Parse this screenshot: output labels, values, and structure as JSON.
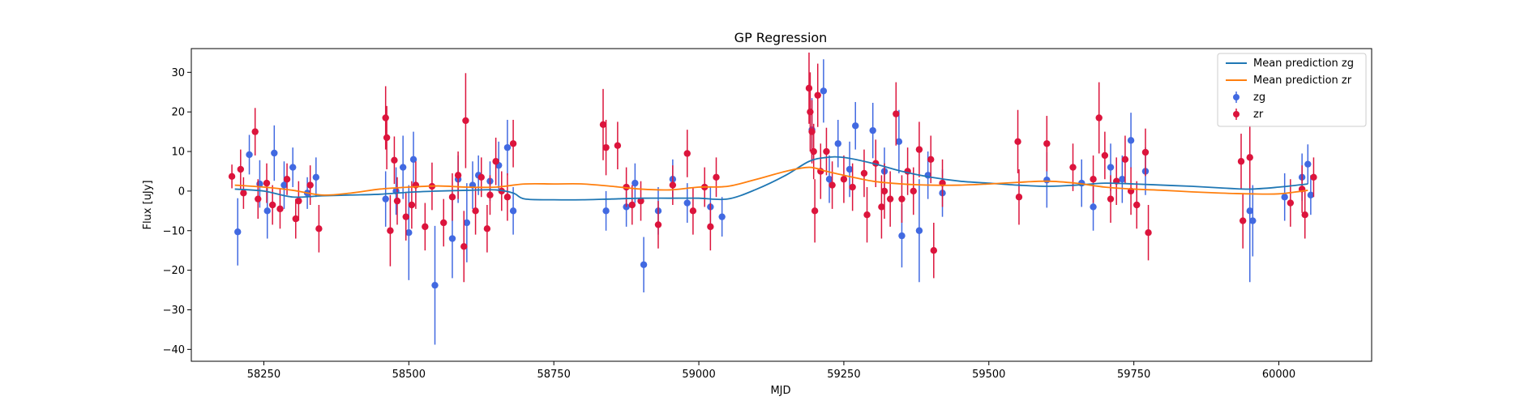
{
  "chart_data": {
    "type": "scatter",
    "title": "GP Regression",
    "xlabel": "MJD",
    "ylabel": "Flux [uJy]",
    "xlim": [
      58125,
      60160
    ],
    "ylim": [
      -43,
      36
    ],
    "xticks": [
      58250,
      58500,
      58750,
      59000,
      59250,
      59500,
      59750,
      60000
    ],
    "yticks": [
      -40,
      -30,
      -20,
      -10,
      0,
      10,
      20,
      30
    ],
    "grid": false,
    "legend_position": "top-right",
    "colors": {
      "mean_zg": "#1f77b4",
      "mean_zr": "#ff7f0e",
      "zg": "#4169e1",
      "zr": "#dc143c"
    },
    "legend": [
      {
        "label": "Mean prediction zg",
        "kind": "line",
        "color": "#1f77b4"
      },
      {
        "label": "Mean prediction zr",
        "kind": "line",
        "color": "#ff7f0e"
      },
      {
        "label": "zg",
        "kind": "errorbar",
        "color": "#4169e1"
      },
      {
        "label": "zr",
        "kind": "errorbar",
        "color": "#dc143c"
      }
    ],
    "lines": [
      {
        "name": "Mean prediction zg",
        "color": "#1f77b4",
        "points": [
          [
            58200,
            0.5
          ],
          [
            58250,
            0.0
          ],
          [
            58300,
            -1.5
          ],
          [
            58350,
            -1.2
          ],
          [
            58400,
            -1.0
          ],
          [
            58450,
            -0.8
          ],
          [
            58500,
            -0.3
          ],
          [
            58550,
            0.0
          ],
          [
            58600,
            0.2
          ],
          [
            58650,
            0.3
          ],
          [
            58680,
            -0.5
          ],
          [
            58700,
            -2.0
          ],
          [
            58750,
            -2.2
          ],
          [
            58800,
            -2.2
          ],
          [
            58850,
            -2.0
          ],
          [
            58900,
            -1.8
          ],
          [
            58950,
            -1.8
          ],
          [
            59000,
            -1.8
          ],
          [
            59050,
            -2.0
          ],
          [
            59100,
            0.5
          ],
          [
            59150,
            4.0
          ],
          [
            59190,
            7.5
          ],
          [
            59220,
            8.5
          ],
          [
            59250,
            8.5
          ],
          [
            59300,
            7.0
          ],
          [
            59350,
            5.0
          ],
          [
            59400,
            3.5
          ],
          [
            59450,
            2.5
          ],
          [
            59500,
            2.0
          ],
          [
            59550,
            1.5
          ],
          [
            59600,
            1.2
          ],
          [
            59650,
            1.5
          ],
          [
            59700,
            2.0
          ],
          [
            59750,
            1.8
          ],
          [
            59800,
            1.5
          ],
          [
            59850,
            1.2
          ],
          [
            59900,
            0.8
          ],
          [
            59950,
            0.5
          ],
          [
            60000,
            1.0
          ],
          [
            60050,
            1.8
          ]
        ]
      },
      {
        "name": "Mean prediction zr",
        "color": "#ff7f0e",
        "points": [
          [
            58200,
            1.5
          ],
          [
            58250,
            1.0
          ],
          [
            58300,
            0.2
          ],
          [
            58350,
            -1.0
          ],
          [
            58400,
            -0.5
          ],
          [
            58450,
            0.5
          ],
          [
            58500,
            1.0
          ],
          [
            58550,
            1.3
          ],
          [
            58600,
            1.0
          ],
          [
            58650,
            1.0
          ],
          [
            58700,
            1.8
          ],
          [
            58750,
            1.8
          ],
          [
            58800,
            1.8
          ],
          [
            58850,
            1.2
          ],
          [
            58900,
            0.5
          ],
          [
            58950,
            0.3
          ],
          [
            59000,
            1.0
          ],
          [
            59050,
            1.2
          ],
          [
            59100,
            3.0
          ],
          [
            59150,
            5.0
          ],
          [
            59190,
            6.0
          ],
          [
            59220,
            5.0
          ],
          [
            59250,
            4.0
          ],
          [
            59300,
            2.5
          ],
          [
            59350,
            1.8
          ],
          [
            59400,
            1.5
          ],
          [
            59450,
            1.5
          ],
          [
            59500,
            1.8
          ],
          [
            59550,
            2.2
          ],
          [
            59600,
            2.5
          ],
          [
            59650,
            2.0
          ],
          [
            59700,
            1.0
          ],
          [
            59750,
            0.5
          ],
          [
            59800,
            0.2
          ],
          [
            59850,
            -0.2
          ],
          [
            59900,
            -0.5
          ],
          [
            59950,
            -0.7
          ],
          [
            60000,
            -0.7
          ],
          [
            60050,
            0.2
          ]
        ]
      }
    ],
    "series": [
      {
        "name": "zg",
        "color": "#4169e1",
        "points": [
          [
            58205,
            -10.3,
            8.5
          ],
          [
            58225,
            9.2,
            5.0
          ],
          [
            58243,
            1.8,
            6.0
          ],
          [
            58256,
            -5.0,
            7.0
          ],
          [
            58268,
            9.6,
            7.0
          ],
          [
            58285,
            1.5,
            6.0
          ],
          [
            58300,
            6.0,
            5.0
          ],
          [
            58325,
            -0.5,
            4.0
          ],
          [
            58340,
            3.5,
            5.0
          ],
          [
            58460,
            -2.0,
            7.0
          ],
          [
            58478,
            0.0,
            6.0
          ],
          [
            58490,
            6.0,
            8.0
          ],
          [
            58500,
            -10.5,
            12.0
          ],
          [
            58508,
            8.0,
            7.0
          ],
          [
            58545,
            -23.8,
            15.0
          ],
          [
            58575,
            -12.0,
            10.0
          ],
          [
            58585,
            3.0,
            6.0
          ],
          [
            58600,
            -8.0,
            10.0
          ],
          [
            58610,
            1.5,
            6.0
          ],
          [
            58620,
            4.0,
            5.0
          ],
          [
            58640,
            2.5,
            5.0
          ],
          [
            58655,
            6.5,
            6.0
          ],
          [
            58670,
            11.0,
            7.0
          ],
          [
            58680,
            -5.0,
            6.0
          ],
          [
            58840,
            -5.0,
            5.0
          ],
          [
            58875,
            -4.0,
            5.0
          ],
          [
            58890,
            2.0,
            5.0
          ],
          [
            58905,
            -18.6,
            7.0
          ],
          [
            58930,
            -5.0,
            6.0
          ],
          [
            58955,
            3.0,
            5.0
          ],
          [
            58980,
            -3.0,
            5.0
          ],
          [
            59020,
            -4.0,
            5.0
          ],
          [
            59040,
            -6.5,
            5.0
          ],
          [
            59195,
            15.5,
            8.0
          ],
          [
            59215,
            25.3,
            8.0
          ],
          [
            59225,
            3.0,
            6.0
          ],
          [
            59240,
            12.0,
            6.0
          ],
          [
            59260,
            5.5,
            7.0
          ],
          [
            59270,
            16.5,
            6.0
          ],
          [
            59300,
            15.3,
            7.0
          ],
          [
            59320,
            5.0,
            6.0
          ],
          [
            59345,
            12.5,
            8.0
          ],
          [
            59350,
            -11.3,
            8.0
          ],
          [
            59380,
            -10.0,
            13.0
          ],
          [
            59395,
            4.0,
            6.0
          ],
          [
            59420,
            -0.5,
            6.0
          ],
          [
            59600,
            2.8,
            7.0
          ],
          [
            59660,
            2.0,
            6.0
          ],
          [
            59680,
            -4.0,
            6.0
          ],
          [
            59710,
            6.0,
            6.0
          ],
          [
            59730,
            3.0,
            6.0
          ],
          [
            59745,
            12.8,
            7.0
          ],
          [
            59770,
            5.0,
            6.0
          ],
          [
            59950,
            -5.0,
            18.0
          ],
          [
            59955,
            -7.5,
            9.0
          ],
          [
            60010,
            -1.5,
            6.0
          ],
          [
            60040,
            3.5,
            6.0
          ],
          [
            60050,
            6.8,
            5.0
          ],
          [
            60055,
            -1.0,
            5.0
          ]
        ]
      },
      {
        "name": "zr",
        "color": "#dc143c",
        "points": [
          [
            58195,
            3.7,
            3.0
          ],
          [
            58210,
            5.5,
            5.0
          ],
          [
            58215,
            -0.5,
            4.0
          ],
          [
            58235,
            15.0,
            6.0
          ],
          [
            58240,
            -2.0,
            5.0
          ],
          [
            58255,
            2.0,
            5.0
          ],
          [
            58265,
            -3.5,
            5.0
          ],
          [
            58278,
            -4.5,
            5.0
          ],
          [
            58290,
            3.0,
            4.0
          ],
          [
            58305,
            -7.0,
            5.0
          ],
          [
            58310,
            -2.5,
            5.0
          ],
          [
            58330,
            1.5,
            5.0
          ],
          [
            58345,
            -9.5,
            6.0
          ],
          [
            58460,
            18.5,
            8.0
          ],
          [
            58462,
            13.5,
            8.0
          ],
          [
            58468,
            -10.0,
            9.0
          ],
          [
            58475,
            7.8,
            6.0
          ],
          [
            58480,
            -2.5,
            6.0
          ],
          [
            58495,
            -6.5,
            6.0
          ],
          [
            58505,
            -3.5,
            6.0
          ],
          [
            58512,
            1.5,
            6.0
          ],
          [
            58528,
            -9.0,
            6.0
          ],
          [
            58540,
            1.2,
            6.0
          ],
          [
            58560,
            -8.0,
            6.0
          ],
          [
            58575,
            -1.5,
            6.0
          ],
          [
            58585,
            4.0,
            6.0
          ],
          [
            58595,
            -14.0,
            9.0
          ],
          [
            58598,
            17.8,
            12.0
          ],
          [
            58615,
            -5.0,
            6.0
          ],
          [
            58625,
            3.5,
            5.0
          ],
          [
            58635,
            -9.5,
            6.0
          ],
          [
            58640,
            -1.0,
            5.0
          ],
          [
            58650,
            7.5,
            6.0
          ],
          [
            58660,
            0.0,
            5.0
          ],
          [
            58670,
            -1.5,
            6.0
          ],
          [
            58680,
            12.0,
            6.0
          ],
          [
            58835,
            16.8,
            9.0
          ],
          [
            58840,
            11.0,
            7.0
          ],
          [
            58860,
            11.5,
            6.0
          ],
          [
            58875,
            1.0,
            5.0
          ],
          [
            58885,
            -3.5,
            5.0
          ],
          [
            58900,
            -2.5,
            5.0
          ],
          [
            58930,
            -8.5,
            6.0
          ],
          [
            58955,
            1.5,
            5.0
          ],
          [
            58980,
            9.5,
            6.0
          ],
          [
            58990,
            -5.0,
            6.0
          ],
          [
            59010,
            1.0,
            5.0
          ],
          [
            59020,
            -9.0,
            6.0
          ],
          [
            59030,
            3.5,
            5.0
          ],
          [
            59190,
            26.0,
            9.0
          ],
          [
            59192,
            20.0,
            10.0
          ],
          [
            59195,
            15.0,
            8.0
          ],
          [
            59198,
            10.0,
            7.0
          ],
          [
            59200,
            -5.0,
            8.0
          ],
          [
            59205,
            24.2,
            8.0
          ],
          [
            59210,
            5.0,
            7.0
          ],
          [
            59220,
            10.0,
            6.0
          ],
          [
            59230,
            1.5,
            6.0
          ],
          [
            59250,
            3.0,
            6.0
          ],
          [
            59265,
            1.0,
            6.0
          ],
          [
            59285,
            4.5,
            6.0
          ],
          [
            59290,
            -6.0,
            7.0
          ],
          [
            59305,
            7.0,
            6.0
          ],
          [
            59315,
            -4.0,
            8.0
          ],
          [
            59320,
            0.0,
            7.0
          ],
          [
            59330,
            -2.0,
            7.0
          ],
          [
            59340,
            19.5,
            8.0
          ],
          [
            59350,
            -2.0,
            6.0
          ],
          [
            59360,
            5.0,
            6.0
          ],
          [
            59370,
            0.0,
            6.0
          ],
          [
            59380,
            10.5,
            7.0
          ],
          [
            59400,
            8.0,
            6.0
          ],
          [
            59405,
            -15.0,
            7.0
          ],
          [
            59420,
            2.0,
            6.0
          ],
          [
            59550,
            12.5,
            8.0
          ],
          [
            59552,
            -1.5,
            7.0
          ],
          [
            59600,
            12.0,
            7.0
          ],
          [
            59645,
            6.0,
            6.0
          ],
          [
            59680,
            3.0,
            6.0
          ],
          [
            59690,
            18.5,
            9.0
          ],
          [
            59700,
            9.0,
            6.0
          ],
          [
            59710,
            -2.0,
            6.0
          ],
          [
            59720,
            2.5,
            6.0
          ],
          [
            59735,
            8.0,
            6.0
          ],
          [
            59745,
            0.0,
            6.0
          ],
          [
            59755,
            -3.5,
            6.0
          ],
          [
            59770,
            9.8,
            6.0
          ],
          [
            59775,
            -10.5,
            7.0
          ],
          [
            59935,
            7.5,
            7.0
          ],
          [
            59938,
            -7.5,
            7.0
          ],
          [
            59950,
            8.5,
            8.0
          ],
          [
            60020,
            -3.0,
            6.0
          ],
          [
            60040,
            0.5,
            6.0
          ],
          [
            60045,
            -6.0,
            6.0
          ],
          [
            60060,
            3.5,
            5.0
          ]
        ]
      }
    ]
  }
}
